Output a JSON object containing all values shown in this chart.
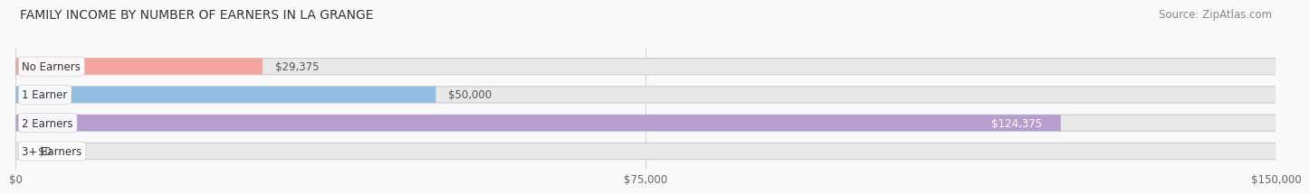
{
  "title": "FAMILY INCOME BY NUMBER OF EARNERS IN LA GRANGE",
  "source": "Source: ZipAtlas.com",
  "categories": [
    "No Earners",
    "1 Earner",
    "2 Earners",
    "3+ Earners"
  ],
  "values": [
    29375,
    50000,
    124375,
    0
  ],
  "bar_colors": [
    "#f2a49e",
    "#93bde2",
    "#b89ecf",
    "#7ecfcf"
  ],
  "bar_bg_color": "#e8e8e8",
  "value_label_colors": [
    "#555555",
    "#555555",
    "#ffffff",
    "#555555"
  ],
  "xlim": [
    0,
    150000
  ],
  "xtick_vals": [
    0,
    75000,
    150000
  ],
  "xtick_labels": [
    "$0",
    "$75,000",
    "$150,000"
  ],
  "title_fontsize": 10,
  "source_fontsize": 8.5,
  "bar_height": 0.58,
  "background_color": "#f9f9f9"
}
